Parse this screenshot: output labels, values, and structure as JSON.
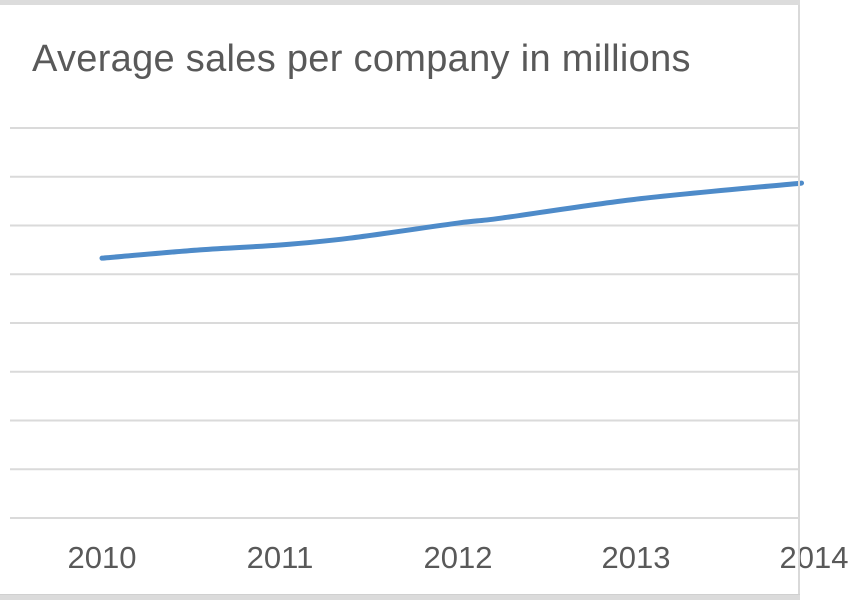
{
  "chart_data": {
    "type": "line",
    "title": "Average sales per company in millions",
    "categories": [
      "2010",
      "2011",
      "2012",
      "2013",
      "2014"
    ],
    "xlabel": "",
    "ylabel": "",
    "legend": {
      "visible": false
    },
    "grid": "horizontal",
    "x_axis": {
      "last_label_clipped_by_viewport": true
    },
    "y_axis": {
      "tick_labels_visible": false,
      "gridline_count": 9,
      "value_units": "gridline steps above bottom axis (y labels cropped out of view)"
    },
    "series": [
      {
        "name": "Average sales per company",
        "smooth": true,
        "color": "#4e8bc9",
        "points": [
          {
            "x": 2010.0,
            "v": 5.33
          },
          {
            "x": 2010.55,
            "v": 5.5
          },
          {
            "x": 2011.0,
            "v": 5.6
          },
          {
            "x": 2011.39,
            "v": 5.74
          },
          {
            "x": 2012.0,
            "v": 6.05
          },
          {
            "x": 2012.24,
            "v": 6.15
          },
          {
            "x": 2013.0,
            "v": 6.54
          },
          {
            "x": 2013.93,
            "v": 6.87
          }
        ]
      }
    ],
    "values_at_year_ticks": {
      "2010": 5.33,
      "2011": 5.6,
      "2012": 6.05,
      "2013": 6.54
    },
    "colors": {
      "line": "#4e8bc9",
      "gridline": "#dadada",
      "title_text": "#595959",
      "axis_text": "#595959",
      "background": "#ffffff",
      "window_edge": "#dcdcdc"
    }
  }
}
